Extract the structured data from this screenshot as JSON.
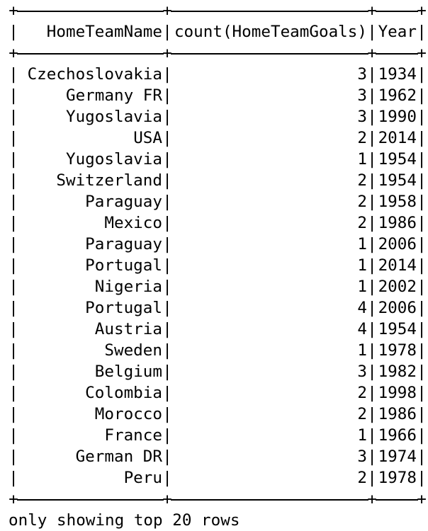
{
  "table": {
    "columns": [
      "HomeTeamName",
      "count(HomeTeamGoals)",
      "Year"
    ],
    "rows": [
      [
        "Czechoslovakia",
        "3",
        "1934"
      ],
      [
        "Germany FR",
        "3",
        "1962"
      ],
      [
        "Yugoslavia",
        "3",
        "1990"
      ],
      [
        "USA",
        "2",
        "2014"
      ],
      [
        "Yugoslavia",
        "1",
        "1954"
      ],
      [
        "Switzerland",
        "2",
        "1954"
      ],
      [
        "Paraguay",
        "2",
        "1958"
      ],
      [
        "Mexico",
        "2",
        "1986"
      ],
      [
        "Paraguay",
        "1",
        "2006"
      ],
      [
        "Portugal",
        "1",
        "2014"
      ],
      [
        "Nigeria",
        "1",
        "2002"
      ],
      [
        "Portugal",
        "4",
        "2006"
      ],
      [
        "Austria",
        "4",
        "1954"
      ],
      [
        "Sweden",
        "1",
        "1978"
      ],
      [
        "Belgium",
        "3",
        "1982"
      ],
      [
        "Colombia",
        "2",
        "1998"
      ],
      [
        "Morocco",
        "2",
        "1986"
      ],
      [
        "France",
        "1",
        "1966"
      ],
      [
        "German DR",
        "3",
        "1974"
      ],
      [
        "Peru",
        "2",
        "1978"
      ]
    ]
  },
  "footer": "only showing top 20 rows"
}
